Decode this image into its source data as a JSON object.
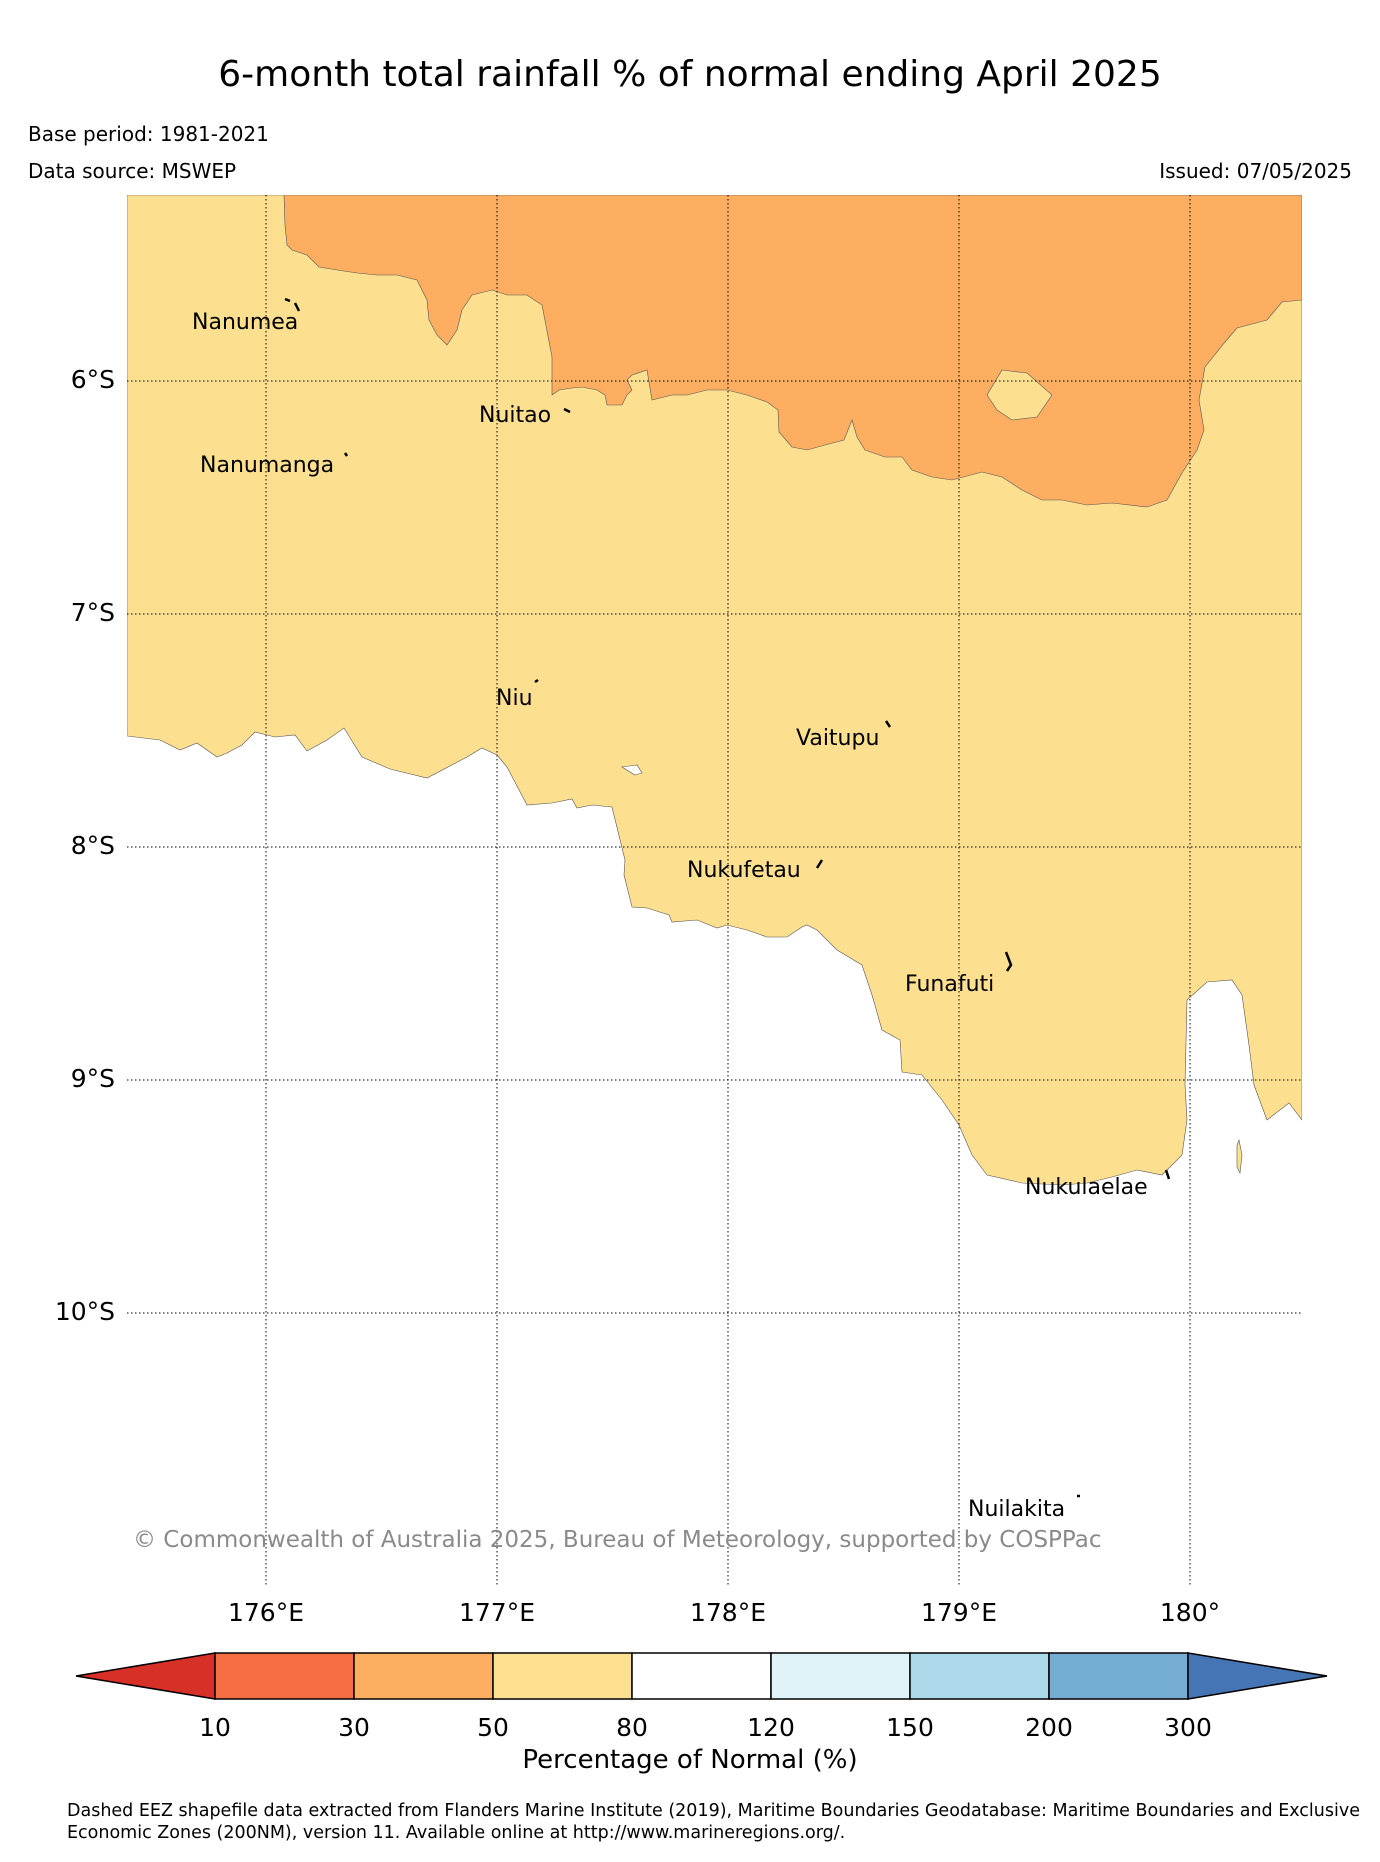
{
  "header": {
    "title": "6-month total rainfall % of normal ending April 2025",
    "base_period": "Base period: 1981-2021",
    "data_source": "Data source: MSWEP",
    "issued": "Issued: 07/05/2025"
  },
  "map": {
    "latitude_labels": [
      "6°S",
      "7°S",
      "8°S",
      "9°S",
      "10°S"
    ],
    "longitude_labels": [
      "176°E",
      "177°E",
      "178°E",
      "179°E",
      "180°"
    ],
    "places": [
      {
        "name": "Nanumea",
        "lon": 176.15,
        "lat": -5.68
      },
      {
        "name": "Nuitao",
        "lon": 177.3,
        "lat": -6.11
      },
      {
        "name": "Nanumanga",
        "lon": 176.33,
        "lat": -6.3
      },
      {
        "name": "Niu",
        "lon": 177.16,
        "lat": -7.29
      },
      {
        "name": "Vaitupu",
        "lon": 178.68,
        "lat": -7.48
      },
      {
        "name": "Nukufetau",
        "lon": 178.37,
        "lat": -8.03
      },
      {
        "name": "Funafuti",
        "lon": 179.2,
        "lat": -8.5
      },
      {
        "name": "Nukulaelae",
        "lon": 179.83,
        "lat": -9.38
      },
      {
        "name": "Nuilakita",
        "lon": 179.47,
        "lat": -10.75
      }
    ],
    "copyright": "© Commonwealth of Australia 2025, Bureau of Meteorology, supported by COSPPac",
    "colors": {
      "land_ocean_background": "#ffffff",
      "range_50_80": "#fddf90",
      "range_30_50": "#fdae61"
    }
  },
  "colorbar": {
    "label": "Percentage of Normal (%)",
    "ticks": [
      "10",
      "30",
      "50",
      "80",
      "120",
      "150",
      "200",
      "300"
    ],
    "colors": [
      "#d73027",
      "#f46d43",
      "#fdae61",
      "#fee090",
      "#ffffff",
      "#e0f3f8",
      "#abd9e9",
      "#74add1",
      "#4575b4"
    ]
  },
  "footnote": "Dashed EEZ shapefile data extracted from Flanders Marine Institute (2019), Maritime Boundaries Geodatabase: Maritime Boundaries and Exclusive Economic Zones (200NM), version 11. Available online at http://www.marineregions.org/."
}
